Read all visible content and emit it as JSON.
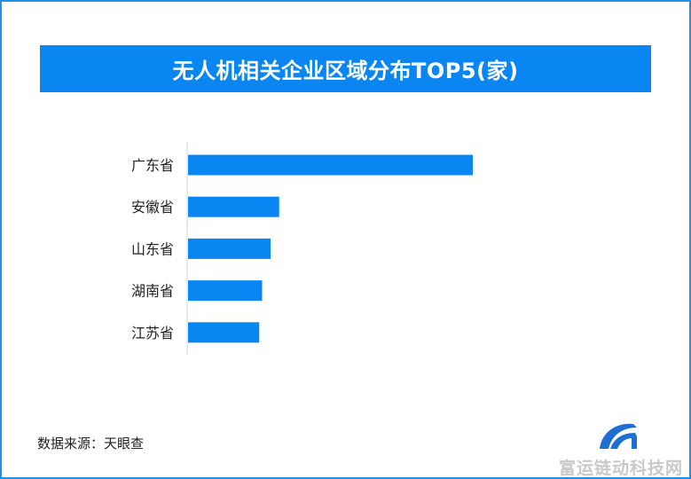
{
  "chart_data": {
    "type": "bar",
    "orientation": "horizontal",
    "title": "无人机相关企业区域分布TOP5(家)",
    "categories": [
      "广东省",
      "安徽省",
      "山东省",
      "湖南省",
      "江苏省"
    ],
    "values": [
      100,
      32,
      29,
      26,
      25
    ],
    "bar_color": "#0a86f2",
    "grid": false,
    "legend": "none"
  },
  "footer": {
    "source": "数据来源：天眼查",
    "watermark": "富运链动科技网"
  },
  "logo": {
    "icon": "brand-logo-icon",
    "color": "#1e6fd0"
  }
}
